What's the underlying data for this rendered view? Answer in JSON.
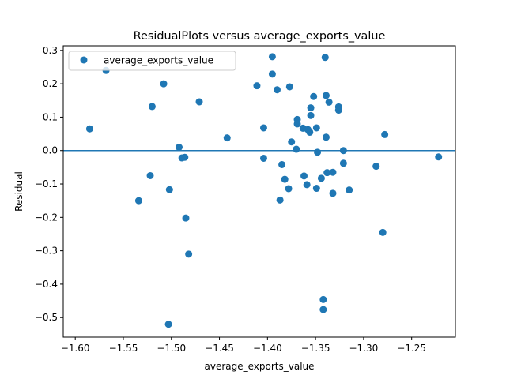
{
  "chart_data": {
    "type": "scatter",
    "title": "ResidualPlots versus average_exports_value",
    "xlabel": "average_exports_value",
    "ylabel": "Residual",
    "xlim": [
      -1.6125,
      -1.2045
    ],
    "ylim": [
      -0.5586,
      0.3138
    ],
    "xticks": [
      "−1.60",
      "−1.55",
      "−1.50",
      "−1.45",
      "−1.40",
      "−1.35",
      "−1.30",
      "−1.25"
    ],
    "xtick_values": [
      -1.6,
      -1.55,
      -1.5,
      -1.45,
      -1.4,
      -1.35,
      -1.3,
      -1.25
    ],
    "yticks": [
      "−0.5",
      "−0.4",
      "−0.3",
      "−0.2",
      "−0.1",
      "0.0",
      "0.1",
      "0.2",
      "0.3"
    ],
    "ytick_values": [
      -0.5,
      -0.4,
      -0.3,
      -0.2,
      -0.1,
      0.0,
      0.1,
      0.2,
      0.3
    ],
    "reference_line": 0.0,
    "grid": false,
    "legend_position": "top-left",
    "colors": {
      "points": "#1f77b4",
      "reference_line": "#1f77b4"
    },
    "series": [
      {
        "name": "average_exports_value",
        "points": [
          [
            -1.585,
            0.065
          ],
          [
            -1.568,
            0.24
          ],
          [
            -1.534,
            -0.15
          ],
          [
            -1.522,
            -0.075
          ],
          [
            -1.52,
            0.132
          ],
          [
            -1.508,
            0.2
          ],
          [
            -1.503,
            -0.52
          ],
          [
            -1.502,
            -0.117
          ],
          [
            -1.492,
            0.01
          ],
          [
            -1.489,
            -0.022
          ],
          [
            -1.486,
            -0.02
          ],
          [
            -1.485,
            -0.202
          ],
          [
            -1.482,
            -0.31
          ],
          [
            -1.471,
            0.146
          ],
          [
            -1.442,
            0.038
          ],
          [
            -1.411,
            0.194
          ],
          [
            -1.404,
            0.068
          ],
          [
            -1.404,
            -0.023
          ],
          [
            -1.395,
            0.281
          ],
          [
            -1.395,
            0.229
          ],
          [
            -1.39,
            0.182
          ],
          [
            -1.387,
            -0.148
          ],
          [
            -1.385,
            -0.042
          ],
          [
            -1.382,
            -0.086
          ],
          [
            -1.378,
            -0.114
          ],
          [
            -1.377,
            0.191
          ],
          [
            -1.375,
            0.026
          ],
          [
            -1.37,
            0.004
          ],
          [
            -1.369,
            0.093
          ],
          [
            -1.369,
            0.08
          ],
          [
            -1.363,
            0.067
          ],
          [
            -1.362,
            -0.076
          ],
          [
            -1.359,
            -0.102
          ],
          [
            -1.358,
            0.063
          ],
          [
            -1.356,
            0.055
          ],
          [
            -1.355,
            0.128
          ],
          [
            -1.355,
            0.105
          ],
          [
            -1.352,
            0.162
          ],
          [
            -1.349,
            -0.113
          ],
          [
            -1.349,
            0.068
          ],
          [
            -1.348,
            -0.005
          ],
          [
            -1.344,
            -0.083
          ],
          [
            -1.342,
            -0.446
          ],
          [
            -1.342,
            -0.476
          ],
          [
            -1.34,
            0.279
          ],
          [
            -1.339,
            0.165
          ],
          [
            -1.339,
            0.04
          ],
          [
            -1.338,
            -0.066
          ],
          [
            -1.336,
            0.145
          ],
          [
            -1.332,
            -0.128
          ],
          [
            -1.332,
            -0.065
          ],
          [
            -1.326,
            0.131
          ],
          [
            -1.326,
            0.121
          ],
          [
            -1.321,
            0.0
          ],
          [
            -1.321,
            -0.038
          ],
          [
            -1.315,
            -0.118
          ],
          [
            -1.287,
            -0.047
          ],
          [
            -1.28,
            -0.245
          ],
          [
            -1.278,
            0.048
          ],
          [
            -1.222,
            -0.019
          ]
        ]
      }
    ]
  }
}
